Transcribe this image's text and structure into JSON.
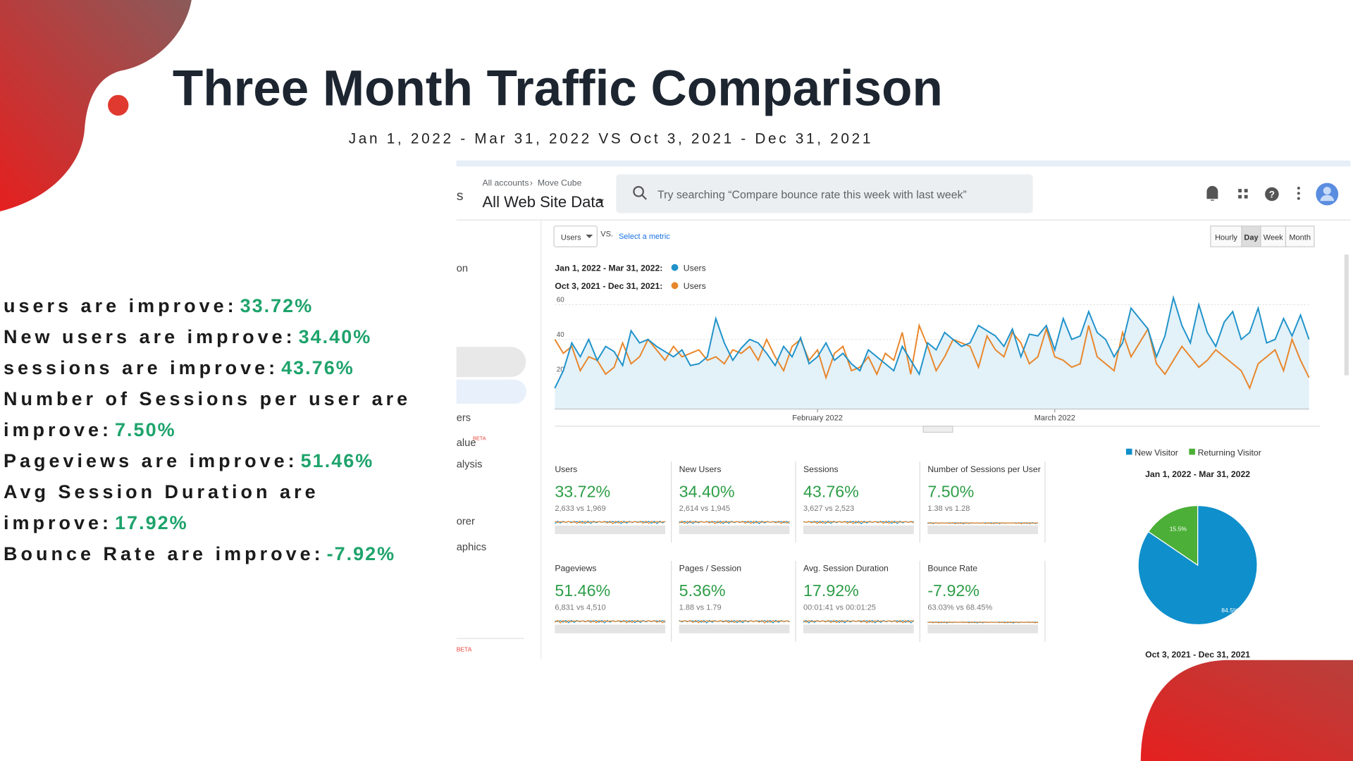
{
  "title": "Three Month Traffic Comparison",
  "subtitle": "Jan 1, 2022 - Mar 31, 2022 VS Oct 3, 2021 - Dec 31, 2021",
  "summary": [
    {
      "label": "users are improve:",
      "value": "33.72%"
    },
    {
      "label": "New users are improve:",
      "value": "34.40%"
    },
    {
      "label": "sessions are improve:",
      "value": "43.76%"
    },
    {
      "label": "Number of Sessions per user are improve:",
      "value": "7.50%"
    },
    {
      "label": "Pageviews are improve:",
      "value": "51.46%"
    },
    {
      "label": "Avg Session Duration are improve:",
      "value": "17.92%"
    },
    {
      "label": "Bounce Rate are improve:",
      "value": "-7.92%"
    }
  ],
  "header": {
    "fragment": "s",
    "breadcrumb": [
      "All accounts",
      "Move Cube"
    ],
    "view": "All Web Site Data",
    "search": "Try searching “Compare bounce rate this week with last week”"
  },
  "sidebar": [
    "on",
    "ers",
    "alue",
    "BETA",
    "alysis",
    "orer",
    "aphics",
    "BETA"
  ],
  "controls": {
    "metric": "Users",
    "vs": "VS.",
    "select": "Select a metric",
    "ranges": [
      "Hourly",
      "Day",
      "Week",
      "Month"
    ]
  },
  "chart_data": [
    {
      "type": "line",
      "categories": [
        null,
        null,
        null,
        null,
        null,
        null,
        null,
        null,
        null,
        null,
        null,
        null,
        null,
        null,
        null,
        null,
        null,
        null,
        null,
        null,
        null,
        null,
        null,
        null,
        null,
        null,
        null,
        null,
        null,
        null,
        null,
        "February 2022",
        null,
        null,
        null,
        null,
        null,
        null,
        null,
        null,
        null,
        null,
        null,
        null,
        null,
        null,
        null,
        null,
        null,
        null,
        null,
        null,
        null,
        null,
        null,
        null,
        null,
        null,
        null,
        "March 2022",
        null,
        null,
        null,
        null,
        null,
        null,
        null,
        null,
        null,
        null,
        null,
        null,
        null,
        null,
        null,
        null,
        null,
        null,
        null,
        null,
        null,
        null,
        null,
        null,
        null,
        null,
        null,
        null,
        null,
        null
      ],
      "series": [
        {
          "name": "Users",
          "label": "Jan 1, 2022 - Mar 31, 2022:",
          "color": "#1f92c9",
          "values": [
            12,
            22,
            38,
            30,
            40,
            28,
            36,
            33,
            25,
            45,
            38,
            40,
            36,
            33,
            30,
            34,
            25,
            26,
            30,
            52,
            38,
            28,
            35,
            40,
            38,
            32,
            25,
            36,
            30,
            41,
            26,
            30,
            38,
            28,
            32,
            26,
            22,
            34,
            30,
            26,
            22,
            36,
            28,
            20,
            38,
            34,
            44,
            40,
            36,
            38,
            48,
            45,
            42,
            36,
            46,
            30,
            43,
            42,
            48,
            34,
            52,
            40,
            42,
            56,
            44,
            40,
            30,
            38,
            58,
            52,
            46,
            30,
            42,
            64,
            48,
            38,
            60,
            44,
            36,
            50,
            56,
            40,
            44,
            58,
            38,
            40,
            52,
            42,
            54,
            40
          ]
        },
        {
          "name": "Users",
          "label": "Oct 3, 2021 - Dec 31, 2021:",
          "color": "#e8862a",
          "values": [
            40,
            32,
            36,
            22,
            30,
            28,
            20,
            24,
            38,
            26,
            30,
            40,
            34,
            28,
            36,
            30,
            32,
            34,
            28,
            30,
            26,
            34,
            32,
            36,
            28,
            40,
            30,
            22,
            36,
            40,
            28,
            34,
            18,
            32,
            36,
            22,
            24,
            30,
            20,
            32,
            28,
            44,
            20,
            48,
            36,
            22,
            30,
            40,
            38,
            36,
            24,
            42,
            34,
            30,
            44,
            38,
            26,
            30,
            46,
            30,
            28,
            24,
            26,
            48,
            30,
            26,
            22,
            44,
            30,
            38,
            46,
            26,
            20,
            28,
            36,
            30,
            24,
            28,
            34,
            30,
            26,
            22,
            12,
            26,
            30,
            34,
            22,
            40,
            28,
            18
          ]
        }
      ],
      "ylim": [
        0,
        65
      ],
      "yticks": [
        20,
        40,
        60
      ],
      "grid": true
    },
    {
      "type": "pie",
      "title": "Jan 1, 2022 - Mar 31, 2022",
      "caption": "Oct 3, 2021 - Dec 31, 2021",
      "categories": [
        "New Visitor",
        "Returning Visitor"
      ],
      "values": [
        84.5,
        15.5
      ],
      "value_labels": [
        "84.5%",
        "15.5%"
      ],
      "colors": [
        "#0f8fcb",
        "#4caf37"
      ]
    }
  ],
  "metrics": [
    {
      "name": "Users",
      "change": "33.72%",
      "comparison": "2,633 vs 1,969"
    },
    {
      "name": "New Users",
      "change": "34.40%",
      "comparison": "2,614 vs 1,945"
    },
    {
      "name": "Sessions",
      "change": "43.76%",
      "comparison": "3,627 vs 2,523"
    },
    {
      "name": "Number of Sessions per User",
      "change": "7.50%",
      "comparison": "1.38 vs 1.28"
    },
    {
      "name": "Pageviews",
      "change": "51.46%",
      "comparison": "6,831 vs 4,510"
    },
    {
      "name": "Pages / Session",
      "change": "5.36%",
      "comparison": "1.88 vs 1.79"
    },
    {
      "name": "Avg. Session Duration",
      "change": "17.92%",
      "comparison": "00:01:41 vs 00:01:25"
    },
    {
      "name": "Bounce Rate",
      "change": "-7.92%",
      "comparison": "63.03% vs 68.45%"
    }
  ]
}
